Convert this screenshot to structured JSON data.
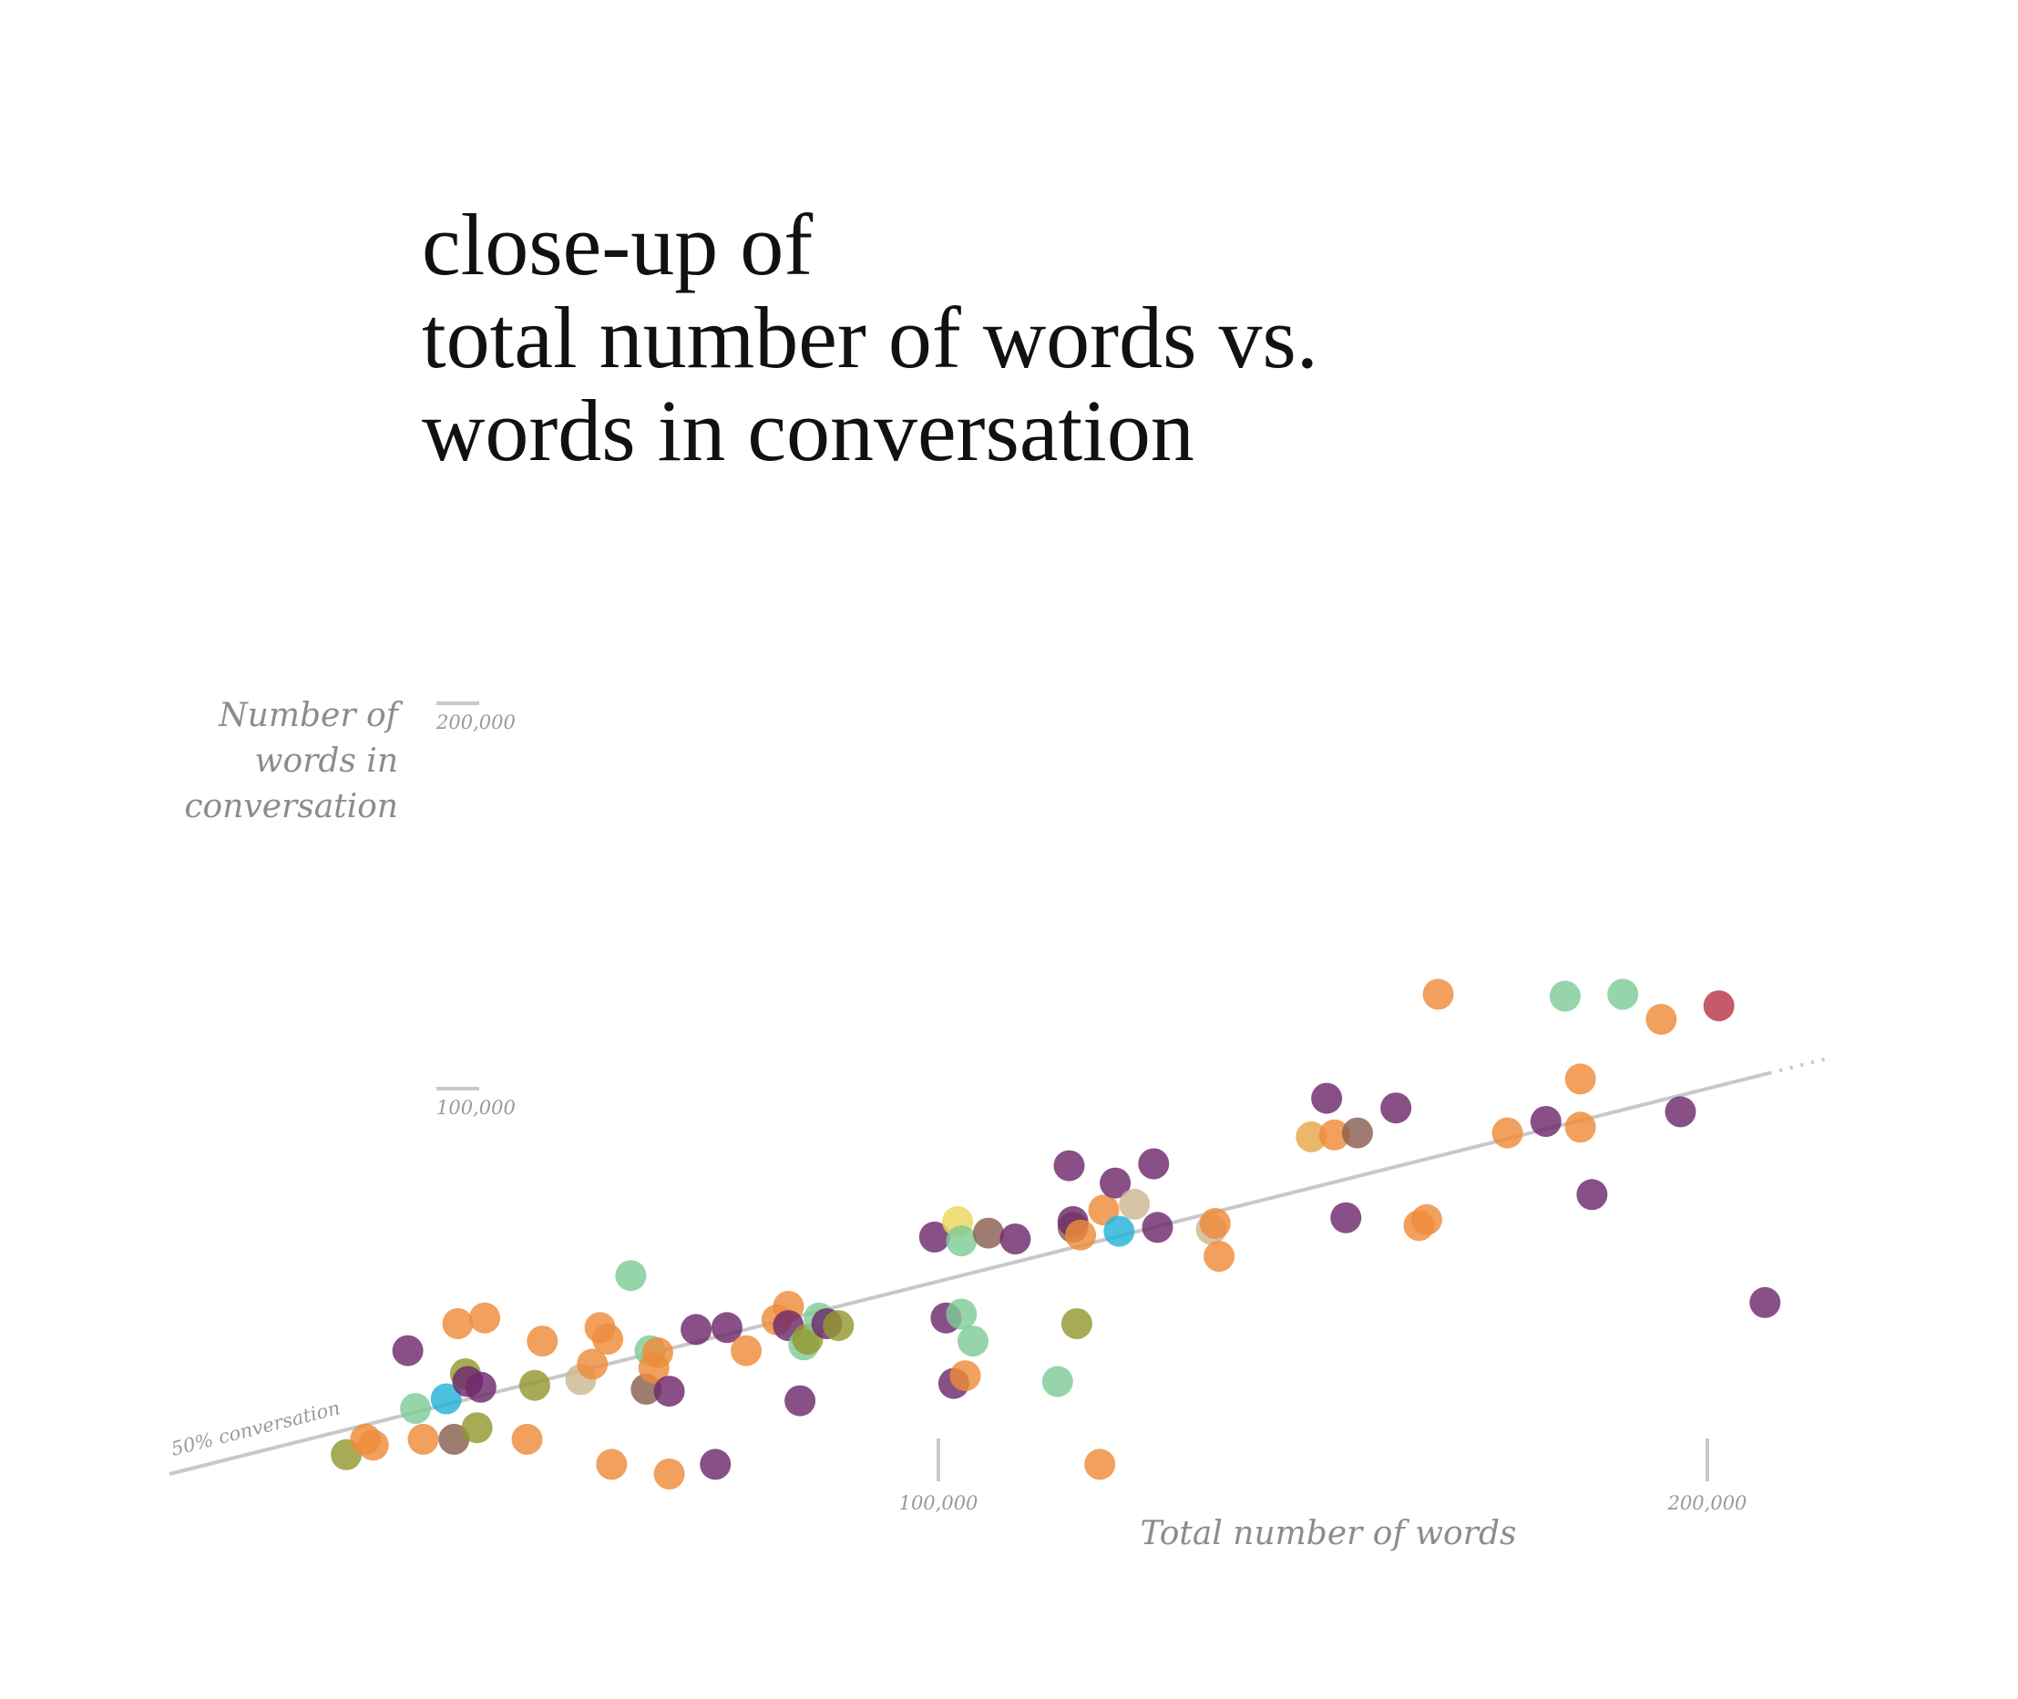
{
  "title_lines": [
    "close-up of",
    "total number of words vs.",
    "words in conversation"
  ],
  "chart_data": {
    "type": "scatter",
    "xlabel": "Total number of words",
    "ylabel_lines": [
      "Number of",
      "words in",
      "conversation"
    ],
    "x_ticks": [
      {
        "value": 100000,
        "label": "100,000"
      },
      {
        "value": 200000,
        "label": "200,000"
      }
    ],
    "y_ticks": [
      {
        "value": 100000,
        "label": "100,000"
      },
      {
        "value": 200000,
        "label": "200,000"
      }
    ],
    "xlim": [
      0,
      240000
    ],
    "ylim": [
      -5000,
      200000
    ],
    "reference_line": {
      "label": "50% conversation",
      "ratio": 0.5
    },
    "colors": {
      "orange": "#ee8b3a",
      "purple": "#6e2a6b",
      "green": "#7fcb96",
      "olive": "#949830",
      "brown": "#8a5f50",
      "blue": "#25b2d8",
      "tan": "#cdb793",
      "yellow": "#ecd75a",
      "gold": "#e6a84a",
      "red": "#b8364a"
    },
    "points": [
      {
        "x": 23000,
        "y": 5000,
        "c": "olive"
      },
      {
        "x": 25500,
        "y": 9000,
        "c": "orange"
      },
      {
        "x": 26500,
        "y": 7500,
        "c": "orange"
      },
      {
        "x": 31000,
        "y": 32000,
        "c": "purple"
      },
      {
        "x": 32000,
        "y": 17000,
        "c": "green"
      },
      {
        "x": 33000,
        "y": 9000,
        "c": "orange"
      },
      {
        "x": 36000,
        "y": 19500,
        "c": "blue"
      },
      {
        "x": 37000,
        "y": 9000,
        "c": "brown"
      },
      {
        "x": 37500,
        "y": 39000,
        "c": "orange"
      },
      {
        "x": 38500,
        "y": 26000,
        "c": "olive"
      },
      {
        "x": 38800,
        "y": 24000,
        "c": "purple"
      },
      {
        "x": 40000,
        "y": 12000,
        "c": "olive"
      },
      {
        "x": 40500,
        "y": 22500,
        "c": "purple"
      },
      {
        "x": 41000,
        "y": 40500,
        "c": "orange"
      },
      {
        "x": 46500,
        "y": 9000,
        "c": "orange"
      },
      {
        "x": 47500,
        "y": 23000,
        "c": "olive"
      },
      {
        "x": 48500,
        "y": 34500,
        "c": "orange"
      },
      {
        "x": 53500,
        "y": 24500,
        "c": "tan"
      },
      {
        "x": 55000,
        "y": 28500,
        "c": "orange"
      },
      {
        "x": 56000,
        "y": 38000,
        "c": "orange"
      },
      {
        "x": 57000,
        "y": 35000,
        "c": "orange"
      },
      {
        "x": 57500,
        "y": 2500,
        "c": "orange"
      },
      {
        "x": 60000,
        "y": 51500,
        "c": "green"
      },
      {
        "x": 62500,
        "y": 32000,
        "c": "green"
      },
      {
        "x": 62000,
        "y": 22000,
        "c": "brown"
      },
      {
        "x": 63000,
        "y": 27500,
        "c": "orange"
      },
      {
        "x": 63500,
        "y": 31500,
        "c": "orange"
      },
      {
        "x": 65000,
        "y": 0,
        "c": "orange"
      },
      {
        "x": 65000,
        "y": 21500,
        "c": "purple"
      },
      {
        "x": 68500,
        "y": 37500,
        "c": "purple"
      },
      {
        "x": 71000,
        "y": 2500,
        "c": "purple"
      },
      {
        "x": 72500,
        "y": 38000,
        "c": "purple"
      },
      {
        "x": 75000,
        "y": 32000,
        "c": "orange"
      },
      {
        "x": 79000,
        "y": 40000,
        "c": "orange"
      },
      {
        "x": 80500,
        "y": 43500,
        "c": "orange"
      },
      {
        "x": 80500,
        "y": 38500,
        "c": "purple"
      },
      {
        "x": 82000,
        "y": 19000,
        "c": "purple"
      },
      {
        "x": 82500,
        "y": 33500,
        "c": "green"
      },
      {
        "x": 83000,
        "y": 35000,
        "c": "olive"
      },
      {
        "x": 84500,
        "y": 40500,
        "c": "green"
      },
      {
        "x": 85500,
        "y": 39000,
        "c": "purple"
      },
      {
        "x": 87000,
        "y": 38500,
        "c": "olive"
      },
      {
        "x": 99500,
        "y": 61500,
        "c": "purple"
      },
      {
        "x": 101000,
        "y": 40500,
        "c": "purple"
      },
      {
        "x": 102000,
        "y": 23500,
        "c": "purple"
      },
      {
        "x": 102500,
        "y": 65500,
        "c": "yellow"
      },
      {
        "x": 103000,
        "y": 60500,
        "c": "green"
      },
      {
        "x": 103000,
        "y": 41500,
        "c": "green"
      },
      {
        "x": 103500,
        "y": 25500,
        "c": "orange"
      },
      {
        "x": 104500,
        "y": 34500,
        "c": "green"
      },
      {
        "x": 106500,
        "y": 62500,
        "c": "brown"
      },
      {
        "x": 110000,
        "y": 61000,
        "c": "purple"
      },
      {
        "x": 115500,
        "y": 24000,
        "c": "green"
      },
      {
        "x": 117000,
        "y": 80000,
        "c": "purple"
      },
      {
        "x": 117500,
        "y": 64000,
        "c": "brown"
      },
      {
        "x": 117500,
        "y": 65500,
        "c": "purple"
      },
      {
        "x": 118000,
        "y": 39000,
        "c": "olive"
      },
      {
        "x": 118500,
        "y": 62000,
        "c": "orange"
      },
      {
        "x": 121000,
        "y": 2500,
        "c": "orange"
      },
      {
        "x": 121500,
        "y": 68500,
        "c": "orange"
      },
      {
        "x": 123000,
        "y": 75500,
        "c": "purple"
      },
      {
        "x": 123500,
        "y": 63000,
        "c": "blue"
      },
      {
        "x": 125500,
        "y": 70000,
        "c": "tan"
      },
      {
        "x": 128000,
        "y": 80500,
        "c": "purple"
      },
      {
        "x": 128500,
        "y": 64000,
        "c": "purple"
      },
      {
        "x": 135500,
        "y": 63500,
        "c": "tan"
      },
      {
        "x": 136000,
        "y": 65000,
        "c": "orange"
      },
      {
        "x": 136500,
        "y": 56500,
        "c": "orange"
      },
      {
        "x": 148500,
        "y": 87500,
        "c": "gold"
      },
      {
        "x": 150500,
        "y": 97500,
        "c": "purple"
      },
      {
        "x": 151500,
        "y": 88000,
        "c": "orange"
      },
      {
        "x": 153000,
        "y": 66500,
        "c": "purple"
      },
      {
        "x": 154500,
        "y": 88500,
        "c": "brown"
      },
      {
        "x": 159500,
        "y": 95000,
        "c": "purple"
      },
      {
        "x": 162500,
        "y": 64500,
        "c": "orange"
      },
      {
        "x": 163500,
        "y": 66000,
        "c": "orange"
      },
      {
        "x": 165000,
        "y": 124500,
        "c": "orange"
      },
      {
        "x": 174000,
        "y": 88500,
        "c": "orange"
      },
      {
        "x": 179000,
        "y": 91500,
        "c": "purple"
      },
      {
        "x": 181500,
        "y": 124000,
        "c": "green"
      },
      {
        "x": 183500,
        "y": 90000,
        "c": "orange"
      },
      {
        "x": 183500,
        "y": 102500,
        "c": "orange"
      },
      {
        "x": 185000,
        "y": 72500,
        "c": "purple"
      },
      {
        "x": 189000,
        "y": 124500,
        "c": "green"
      },
      {
        "x": 194000,
        "y": 118000,
        "c": "orange"
      },
      {
        "x": 196500,
        "y": 94000,
        "c": "purple"
      },
      {
        "x": 201500,
        "y": 121500,
        "c": "red"
      },
      {
        "x": 207500,
        "y": 44500,
        "c": "purple"
      }
    ]
  }
}
